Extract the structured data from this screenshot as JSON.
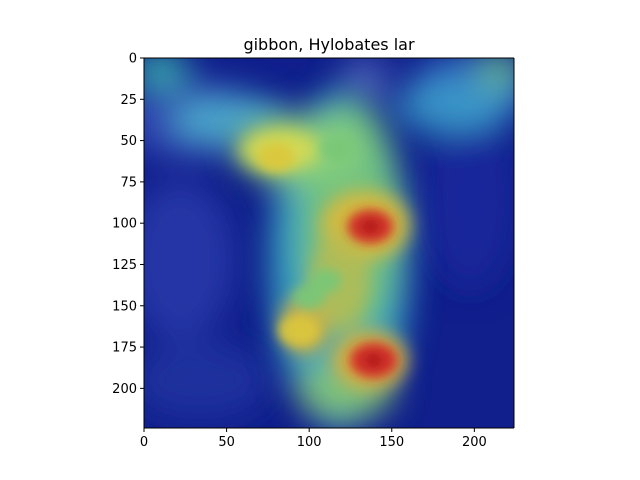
{
  "chart_data": {
    "type": "heatmap",
    "title": "gibbon, Hylobates lar",
    "xlabel": "",
    "ylabel": "",
    "xlim": [
      0,
      224
    ],
    "ylim": [
      224,
      0
    ],
    "xticks": [
      0,
      50,
      100,
      150,
      200
    ],
    "yticks": [
      0,
      25,
      50,
      75,
      100,
      125,
      150,
      175,
      200
    ],
    "colormap": "jet overlay on photograph",
    "hotspots": [
      {
        "x": 137,
        "y": 102,
        "intensity": 0.95
      },
      {
        "x": 139,
        "y": 183,
        "intensity": 1.0
      },
      {
        "x": 94,
        "y": 165,
        "intensity": 0.8
      },
      {
        "x": 80,
        "y": 60,
        "intensity": 0.7
      },
      {
        "x": 117,
        "y": 55,
        "intensity": 0.6
      },
      {
        "x": 110,
        "y": 135,
        "intensity": 0.55
      },
      {
        "x": 100,
        "y": 145,
        "intensity": 0.55
      }
    ],
    "colors": {
      "low": "#0a1e96",
      "mid_low": "#3cb4d2",
      "mid": "#78c878",
      "high": "#dcc83c",
      "peak": "#d22828"
    }
  }
}
